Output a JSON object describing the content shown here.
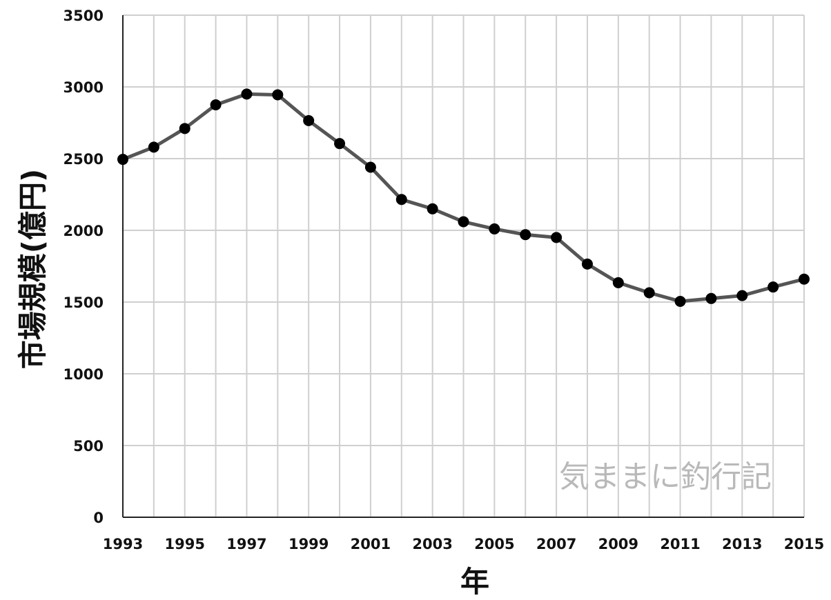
{
  "chart_data": {
    "type": "line",
    "title": "",
    "xlabel": "年",
    "ylabel": "市場規模(億円)",
    "x": [
      1993,
      1994,
      1995,
      1996,
      1997,
      1998,
      1999,
      2000,
      2001,
      2002,
      2003,
      2004,
      2005,
      2006,
      2007,
      2008,
      2009,
      2010,
      2011,
      2012,
      2013,
      2014,
      2015
    ],
    "series": [
      {
        "values": [
          2495,
          2580,
          2710,
          2875,
          2950,
          2945,
          2765,
          2605,
          2440,
          2215,
          2150,
          2060,
          2010,
          1970,
          1950,
          1765,
          1635,
          1565,
          1505,
          1525,
          1545,
          1605,
          1660
        ]
      }
    ],
    "xlim": [
      1993,
      2015
    ],
    "ylim": [
      0,
      3500
    ],
    "xticks": [
      "1993",
      "1995",
      "1997",
      "1999",
      "2001",
      "2003",
      "2005",
      "2007",
      "2009",
      "2011",
      "2013",
      "2015"
    ],
    "yticks": [
      "0",
      "500",
      "1000",
      "1500",
      "2000",
      "2500",
      "3000",
      "3500"
    ],
    "grid": true,
    "line_color": "#555555",
    "marker_color": "#000000",
    "watermark": "気ままに釣行記"
  }
}
